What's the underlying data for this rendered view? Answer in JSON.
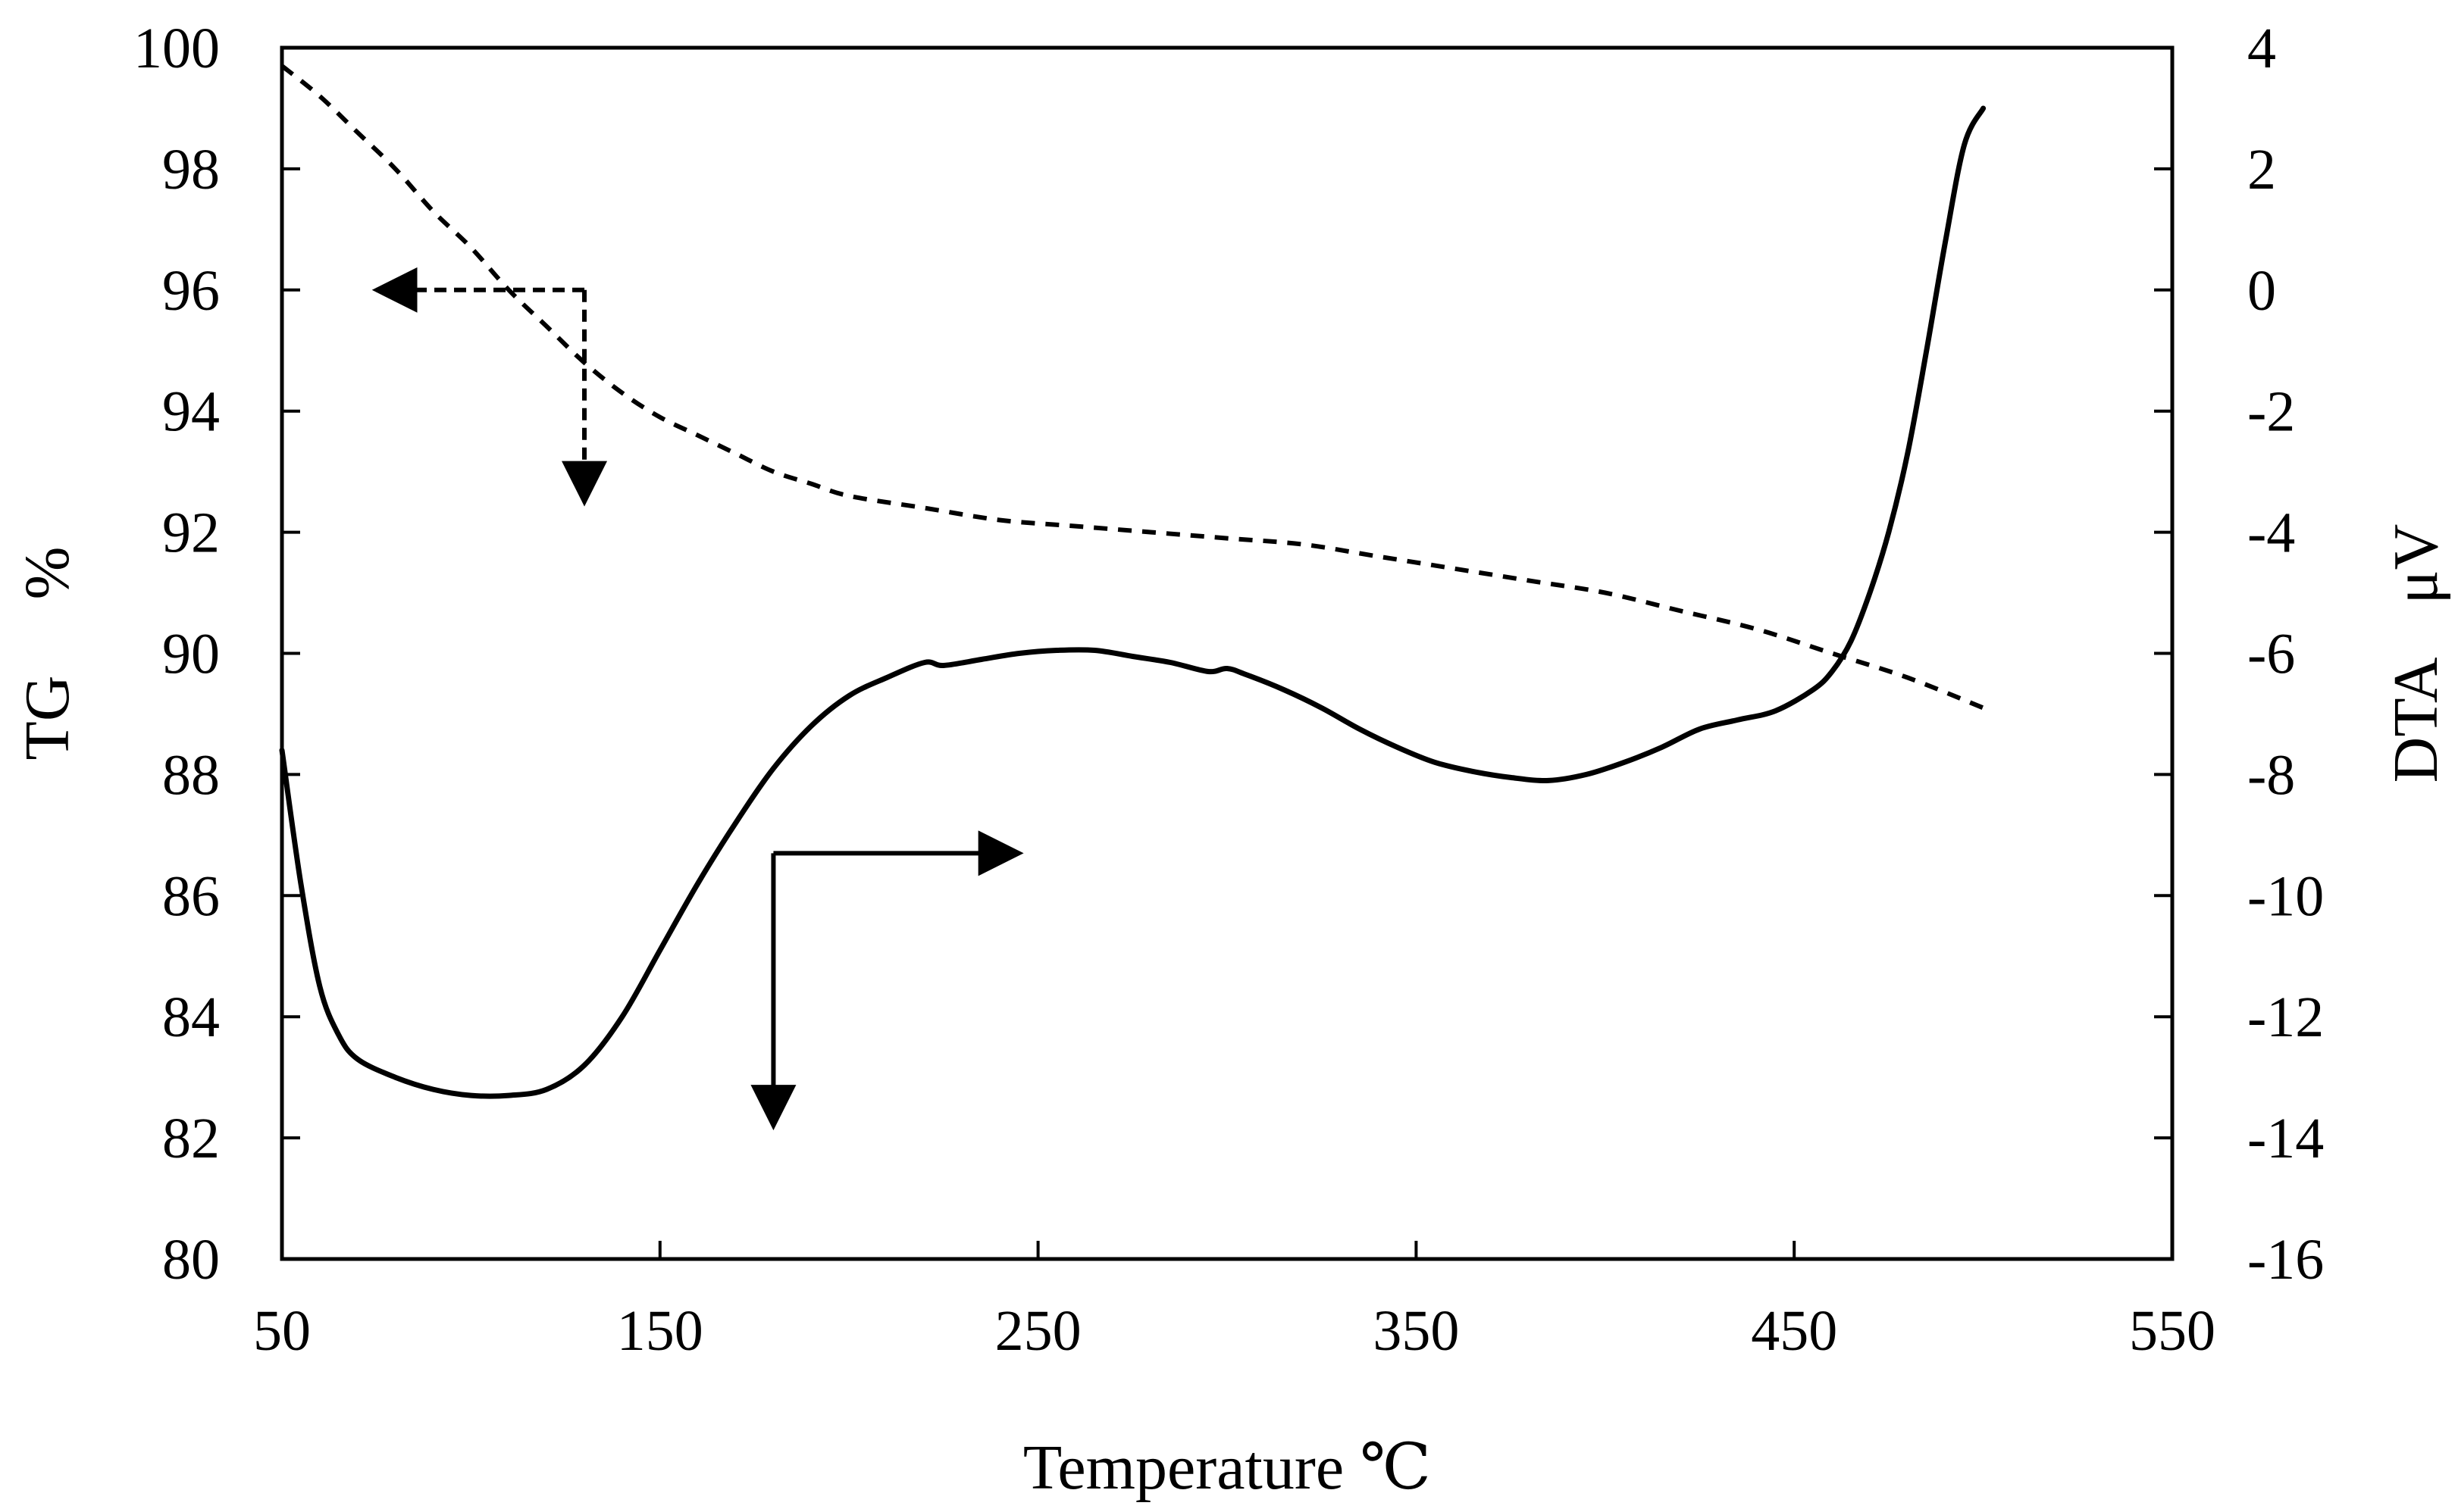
{
  "chart_data": {
    "type": "line",
    "xlabel": "Temperature ℃",
    "xlim": [
      50,
      550
    ],
    "xticks": [
      "50",
      "150",
      "250",
      "350",
      "450",
      "550"
    ],
    "y_left": {
      "label_parts": [
        "TG",
        "%"
      ],
      "lim": [
        80,
        100
      ],
      "ticks": [
        "80",
        "82",
        "84",
        "86",
        "88",
        "90",
        "92",
        "94",
        "96",
        "98",
        "100"
      ]
    },
    "y_right": {
      "label_parts": [
        "DTA",
        "μV"
      ],
      "lim": [
        -16,
        4
      ],
      "ticks": [
        "-16",
        "-14",
        "-12",
        "-10",
        "-8",
        "-6",
        "-4",
        "-2",
        "0",
        "2",
        "4"
      ]
    },
    "grid": false,
    "colors": {
      "line": "#000000",
      "background": "#ffffff"
    },
    "series": [
      {
        "name": "TG",
        "axis": "left",
        "style": "dashed",
        "x": [
          50,
          60,
          70,
          80,
          90,
          100,
          110,
          120,
          130,
          140,
          150,
          160,
          170,
          180,
          190,
          200,
          220,
          240,
          260,
          280,
          300,
          320,
          340,
          360,
          380,
          400,
          420,
          440,
          460,
          480,
          500
        ],
        "y": [
          99.7,
          99.2,
          98.6,
          98.0,
          97.3,
          96.7,
          96.0,
          95.4,
          94.8,
          94.3,
          93.9,
          93.6,
          93.3,
          93.0,
          92.8,
          92.6,
          92.4,
          92.2,
          92.1,
          92.0,
          91.9,
          91.8,
          91.6,
          91.4,
          91.2,
          91.0,
          90.7,
          90.4,
          90.0,
          89.6,
          89.1
        ]
      },
      {
        "name": "DTA",
        "axis": "right",
        "style": "solid",
        "x": [
          50,
          55,
          60,
          65,
          70,
          80,
          90,
          100,
          110,
          120,
          130,
          140,
          150,
          160,
          170,
          180,
          190,
          200,
          210,
          220,
          225,
          235,
          245,
          255,
          265,
          275,
          285,
          295,
          300,
          305,
          315,
          325,
          335,
          345,
          355,
          365,
          375,
          385,
          395,
          405,
          415,
          425,
          435,
          445,
          455,
          460,
          465,
          470,
          475,
          480,
          485,
          490,
          495,
          500
        ],
        "y": [
          -7.6,
          -9.8,
          -11.5,
          -12.3,
          -12.7,
          -13.0,
          -13.2,
          -13.3,
          -13.3,
          -13.2,
          -12.8,
          -12.0,
          -10.9,
          -9.8,
          -8.8,
          -7.9,
          -7.2,
          -6.7,
          -6.4,
          -6.15,
          -6.2,
          -6.1,
          -6.0,
          -5.95,
          -5.95,
          -6.05,
          -6.15,
          -6.3,
          -6.25,
          -6.35,
          -6.6,
          -6.9,
          -7.25,
          -7.55,
          -7.8,
          -7.95,
          -8.05,
          -8.1,
          -8.0,
          -7.8,
          -7.55,
          -7.25,
          -7.1,
          -6.95,
          -6.6,
          -6.3,
          -5.8,
          -5.0,
          -4.0,
          -2.7,
          -1.0,
          0.8,
          2.4,
          3.0
        ]
      }
    ],
    "annotations": [
      {
        "kind": "arrow",
        "style": "dashed",
        "direction": "left",
        "points_to": "TG axis",
        "from_x": 130,
        "from_y_left": 96,
        "to_x": 75
      },
      {
        "kind": "arrow",
        "style": "dashed",
        "direction": "down",
        "from_x": 130,
        "from_y_left": 96,
        "to_y_left": 92.5
      },
      {
        "kind": "arrow",
        "style": "solid",
        "direction": "right",
        "points_to": "DTA axis",
        "from_x": 180,
        "from_y_left": 86.7,
        "to_x": 245
      },
      {
        "kind": "arrow",
        "style": "solid",
        "direction": "down",
        "from_x": 180,
        "from_y_left": 86.7,
        "to_y_left": 82.2
      }
    ]
  }
}
